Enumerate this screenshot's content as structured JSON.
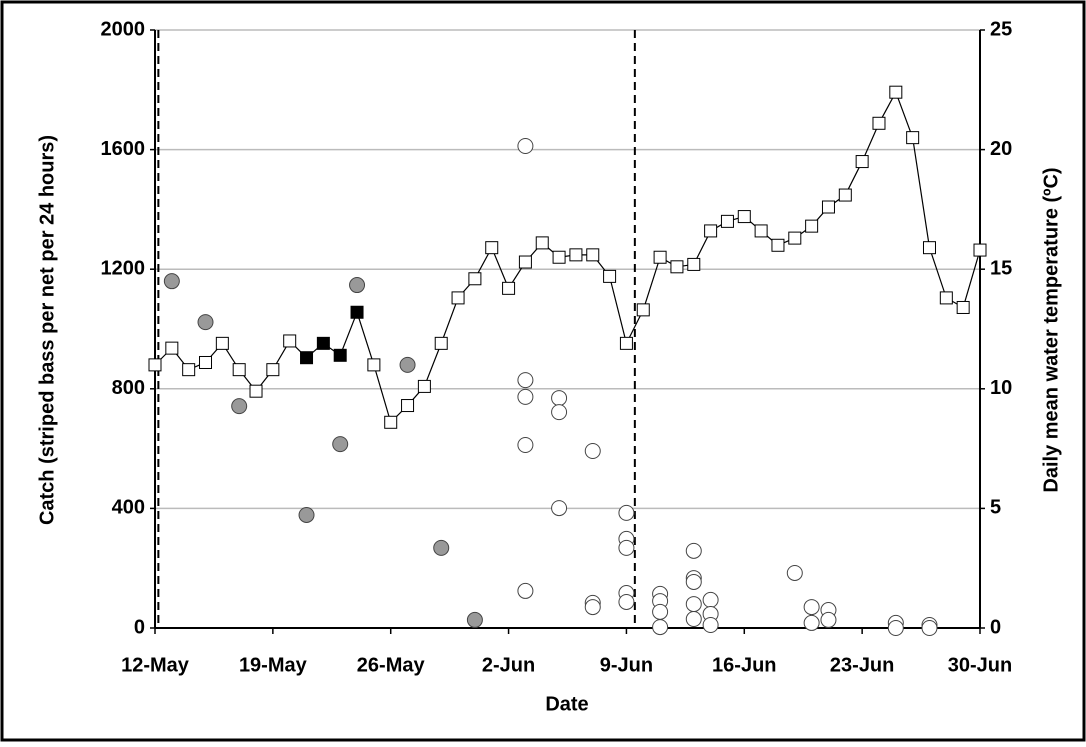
{
  "chart_data": {
    "type": "scatter",
    "xlabel": "Date",
    "ylabel": "Catch (striped bass per net per 24 hours)",
    "y2label": "Daily mean water temperature (ºC)",
    "xlim": [
      0,
      49
    ],
    "xticks": [
      {
        "value": 0,
        "label": "12-May"
      },
      {
        "value": 7,
        "label": "19-May"
      },
      {
        "value": 14,
        "label": "26-May"
      },
      {
        "value": 21,
        "label": "2-Jun"
      },
      {
        "value": 28,
        "label": "9-Jun"
      },
      {
        "value": 35,
        "label": "16-Jun"
      },
      {
        "value": 42,
        "label": "23-Jun"
      },
      {
        "value": 49,
        "label": "30-Jun"
      }
    ],
    "ylim": [
      0,
      2000
    ],
    "yticks": [
      0,
      400,
      800,
      1200,
      1600,
      2000
    ],
    "y2lim": [
      0,
      25
    ],
    "y2ticks": [
      0,
      5,
      10,
      15,
      20,
      25
    ],
    "grid": true,
    "vlines": [
      0.2,
      28.5
    ],
    "series": [
      {
        "type": "line",
        "axis": "y2",
        "color": "#000000",
        "x": [
          0,
          1,
          2,
          3,
          4,
          5,
          6,
          7,
          8,
          9,
          10,
          11,
          12,
          13,
          14,
          15,
          16,
          17,
          18,
          19,
          20,
          21,
          22,
          23,
          24,
          25,
          26,
          27,
          28,
          29,
          30,
          31,
          32,
          33,
          34,
          35,
          36,
          37,
          38,
          39,
          40,
          41,
          42,
          43,
          44,
          45,
          46,
          47,
          48,
          49
        ],
        "values": [
          11.0,
          11.7,
          10.8,
          11.1,
          11.9,
          10.8,
          9.9,
          10.8,
          12.0,
          11.3,
          11.9,
          11.4,
          13.2,
          11.0,
          8.6,
          9.3,
          10.1,
          11.9,
          13.8,
          14.6,
          15.9,
          14.2,
          15.3,
          16.1,
          15.5,
          15.6,
          15.6,
          14.7,
          11.9,
          13.3,
          15.5,
          15.1,
          15.2,
          16.6,
          17.0,
          17.2,
          16.6,
          16.0,
          16.3,
          16.8,
          17.6,
          18.1,
          19.5,
          21.1,
          22.4,
          20.5,
          15.9,
          13.8,
          13.4,
          15.8
        ],
        "marker_colors": [
          "#ffffff",
          "#ffffff",
          "#ffffff",
          "#ffffff",
          "#ffffff",
          "#ffffff",
          "#ffffff",
          "#ffffff",
          "#ffffff",
          "#000000",
          "#000000",
          "#000000",
          "#000000",
          "#ffffff",
          "#ffffff",
          "#ffffff",
          "#ffffff",
          "#ffffff",
          "#ffffff",
          "#ffffff",
          "#ffffff",
          "#ffffff",
          "#ffffff",
          "#ffffff",
          "#ffffff",
          "#ffffff",
          "#ffffff",
          "#ffffff",
          "#ffffff",
          "#ffffff",
          "#ffffff",
          "#ffffff",
          "#ffffff",
          "#ffffff",
          "#ffffff",
          "#ffffff",
          "#ffffff",
          "#ffffff",
          "#ffffff",
          "#ffffff",
          "#ffffff",
          "#ffffff",
          "#ffffff",
          "#ffffff",
          "#ffffff",
          "#ffffff",
          "#ffffff",
          "#ffffff",
          "#ffffff",
          "#ffffff"
        ]
      },
      {
        "type": "scatter",
        "color": "#999999",
        "x": [
          1,
          3,
          5,
          9,
          11,
          12,
          15,
          17,
          19
        ],
        "values": [
          1160,
          1023,
          742,
          378,
          615,
          1147,
          880,
          268,
          27
        ]
      },
      {
        "type": "scatter",
        "color": "#ffffff",
        "x": [
          22,
          22,
          22,
          22,
          22,
          24,
          24,
          24,
          26,
          26,
          26,
          28,
          28,
          28,
          28,
          28,
          30,
          30,
          30,
          30,
          32,
          32,
          32,
          32,
          32,
          33,
          33,
          33,
          38,
          39,
          39,
          40,
          40,
          44,
          44,
          46,
          46
        ],
        "values": [
          1612,
          829,
          773,
          612,
          124,
          769,
          722,
          401,
          592,
          84,
          70,
          385,
          298,
          268,
          117,
          87,
          114,
          90,
          54,
          3,
          258,
          167,
          154,
          80,
          30,
          94,
          47,
          10,
          184,
          70,
          17,
          60,
          27,
          17,
          0,
          10,
          0
        ]
      }
    ]
  }
}
